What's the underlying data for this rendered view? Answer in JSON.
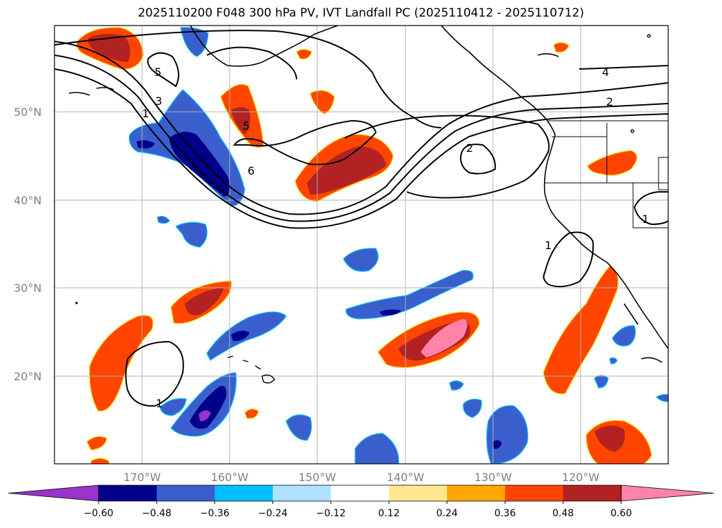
{
  "title": "2025110200 F048 300 hPa PV, IVT Landfall PC (2025110412 - 2025110712)",
  "lat_labels": [
    "50°N",
    "40°N",
    "30°N",
    "20°N"
  ],
  "lon_labels": [
    "170°W",
    "160°W",
    "150°W",
    "140°W",
    "130°W",
    "120°W"
  ],
  "colorbar": {
    "colors": [
      "#9933cc",
      "#00008b",
      "#3a5fcd",
      "#00bfff",
      "#b0e2ff",
      "#ffffff",
      "#ffe78f",
      "#ffa500",
      "#ff4500",
      "#b22222",
      "#ff83a9"
    ],
    "labels": [
      "−0.60",
      "−0.48",
      "−0.36",
      "−0.24",
      "−0.12",
      "0.12",
      "0.24",
      "0.36",
      "0.48",
      "0.60"
    ]
  },
  "contour_labels": [
    "5",
    "3",
    "1",
    "5",
    "6",
    "2",
    "4",
    "2",
    "1",
    "1",
    "1"
  ]
}
